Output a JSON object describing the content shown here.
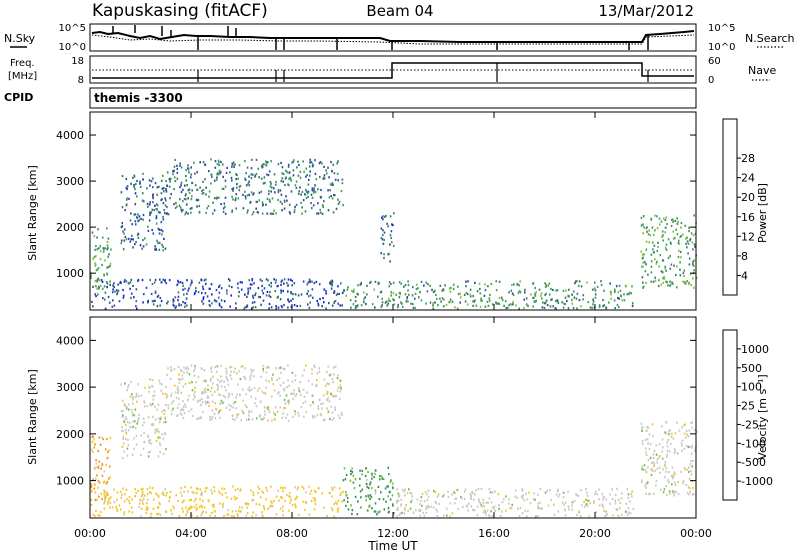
{
  "header": {
    "title": "Kapuskasing (fitACF)",
    "beam": "Beam 04",
    "date": "13/Mar/2012"
  },
  "top_panel": {
    "left_label": "N.Sky",
    "right_label": "N.Search",
    "left_ticks": [
      "10^5",
      "10^0"
    ],
    "right_ticks": [
      "10^5",
      "10^0"
    ]
  },
  "freq_panel": {
    "left_label_1": "Freq.",
    "left_label_2": "[MHz]",
    "right_label": "Nave",
    "left_ticks": [
      "18",
      "8"
    ],
    "right_ticks": [
      "60",
      "0"
    ]
  },
  "cpid": {
    "label": "CPID",
    "value": "themis -3300"
  },
  "x_axis": {
    "label": "Time UT",
    "ticks": [
      "00:00",
      "04:00",
      "08:00",
      "12:00",
      "16:00",
      "20:00",
      "00:00"
    ]
  },
  "y_axis": {
    "label": "Slant Range [km]",
    "ticks": [
      "1000",
      "2000",
      "3000",
      "4000"
    ]
  },
  "power_scale": {
    "label": "Power [dB]",
    "ticks": [
      "4",
      "8",
      "12",
      "16",
      "20",
      "24",
      "28"
    ],
    "colors": [
      "#1226d8",
      "#2c4a9e",
      "#3a7a6a",
      "#3f9d55",
      "#7dc23a",
      "#f2c70a",
      "#f08a12",
      "#ea4a10",
      "#e01414"
    ]
  },
  "velocity_scale": {
    "label": "Velocity [m s⁻¹]",
    "ticks": [
      "1000",
      "500",
      "100",
      "25",
      "-25",
      "-100",
      "-500",
      "-1000"
    ],
    "colors": [
      "#1e2fbd",
      "#2d5a9a",
      "#3b8c58",
      "#6fc23c",
      "#c8c8c4",
      "#f2c62a",
      "#f2950f",
      "#ee6010",
      "#e01e16"
    ]
  },
  "chart_data": [
    {
      "type": "heatmap",
      "title": "Kapuskasing (fitACF)",
      "subtitle": "Beam 04",
      "xlabel": "Time UT",
      "ylabel": "Slant Range [km]",
      "x_ticks": [
        "00:00",
        "04:00",
        "08:00",
        "12:00",
        "16:00",
        "20:00",
        "00:00"
      ],
      "xlim": [
        0,
        24
      ],
      "ylim": [
        200,
        4500
      ],
      "colorbar": {
        "label": "Power [dB]",
        "ticks": [
          4,
          8,
          12,
          16,
          20,
          24,
          28
        ]
      },
      "echo_regions": [
        {
          "t_start": 0.0,
          "t_end": 0.8,
          "r_min": 550,
          "r_max": 2000,
          "power": 14
        },
        {
          "t_start": 1.2,
          "t_end": 3.0,
          "r_min": 1500,
          "r_max": 3200,
          "power": 8
        },
        {
          "t_start": 3.0,
          "t_end": 10.0,
          "r_min": 2300,
          "r_max": 3500,
          "power": 10
        },
        {
          "t_start": 0.0,
          "t_end": 10.0,
          "r_min": 250,
          "r_max": 900,
          "power": 6
        },
        {
          "t_start": 10.0,
          "t_end": 21.5,
          "r_min": 250,
          "r_max": 850,
          "power": 12
        },
        {
          "t_start": 11.5,
          "t_end": 12.0,
          "r_min": 1200,
          "r_max": 2400,
          "power": 8
        },
        {
          "t_start": 21.8,
          "t_end": 24.0,
          "r_min": 700,
          "r_max": 2300,
          "power": 14
        }
      ]
    },
    {
      "type": "heatmap",
      "title": "Kapuskasing (fitACF)",
      "subtitle": "Beam 04",
      "xlabel": "Time UT",
      "ylabel": "Slant Range [km]",
      "x_ticks": [
        "00:00",
        "04:00",
        "08:00",
        "12:00",
        "16:00",
        "20:00",
        "00:00"
      ],
      "xlim": [
        0,
        24
      ],
      "ylim": [
        200,
        4500
      ],
      "colorbar": {
        "label": "Velocity [m s⁻¹]",
        "ticks": [
          1000,
          500,
          100,
          25,
          -25,
          -100,
          -500,
          -1000
        ]
      },
      "echo_regions": [
        {
          "t_start": 0.0,
          "t_end": 0.8,
          "r_min": 550,
          "r_max": 2000,
          "velocity": -150
        },
        {
          "t_start": 1.2,
          "t_end": 3.0,
          "r_min": 1500,
          "r_max": 3200,
          "velocity": 0
        },
        {
          "t_start": 3.0,
          "t_end": 10.0,
          "r_min": 2300,
          "r_max": 3500,
          "velocity": 0
        },
        {
          "t_start": 0.0,
          "t_end": 10.0,
          "r_min": 250,
          "r_max": 900,
          "velocity": -50
        },
        {
          "t_start": 10.0,
          "t_end": 12.0,
          "r_min": 300,
          "r_max": 1300,
          "velocity": 150
        },
        {
          "t_start": 12.0,
          "t_end": 21.5,
          "r_min": 250,
          "r_max": 850,
          "velocity": 0
        },
        {
          "t_start": 21.8,
          "t_end": 24.0,
          "r_min": 700,
          "r_max": 2300,
          "velocity": 0
        }
      ]
    }
  ]
}
